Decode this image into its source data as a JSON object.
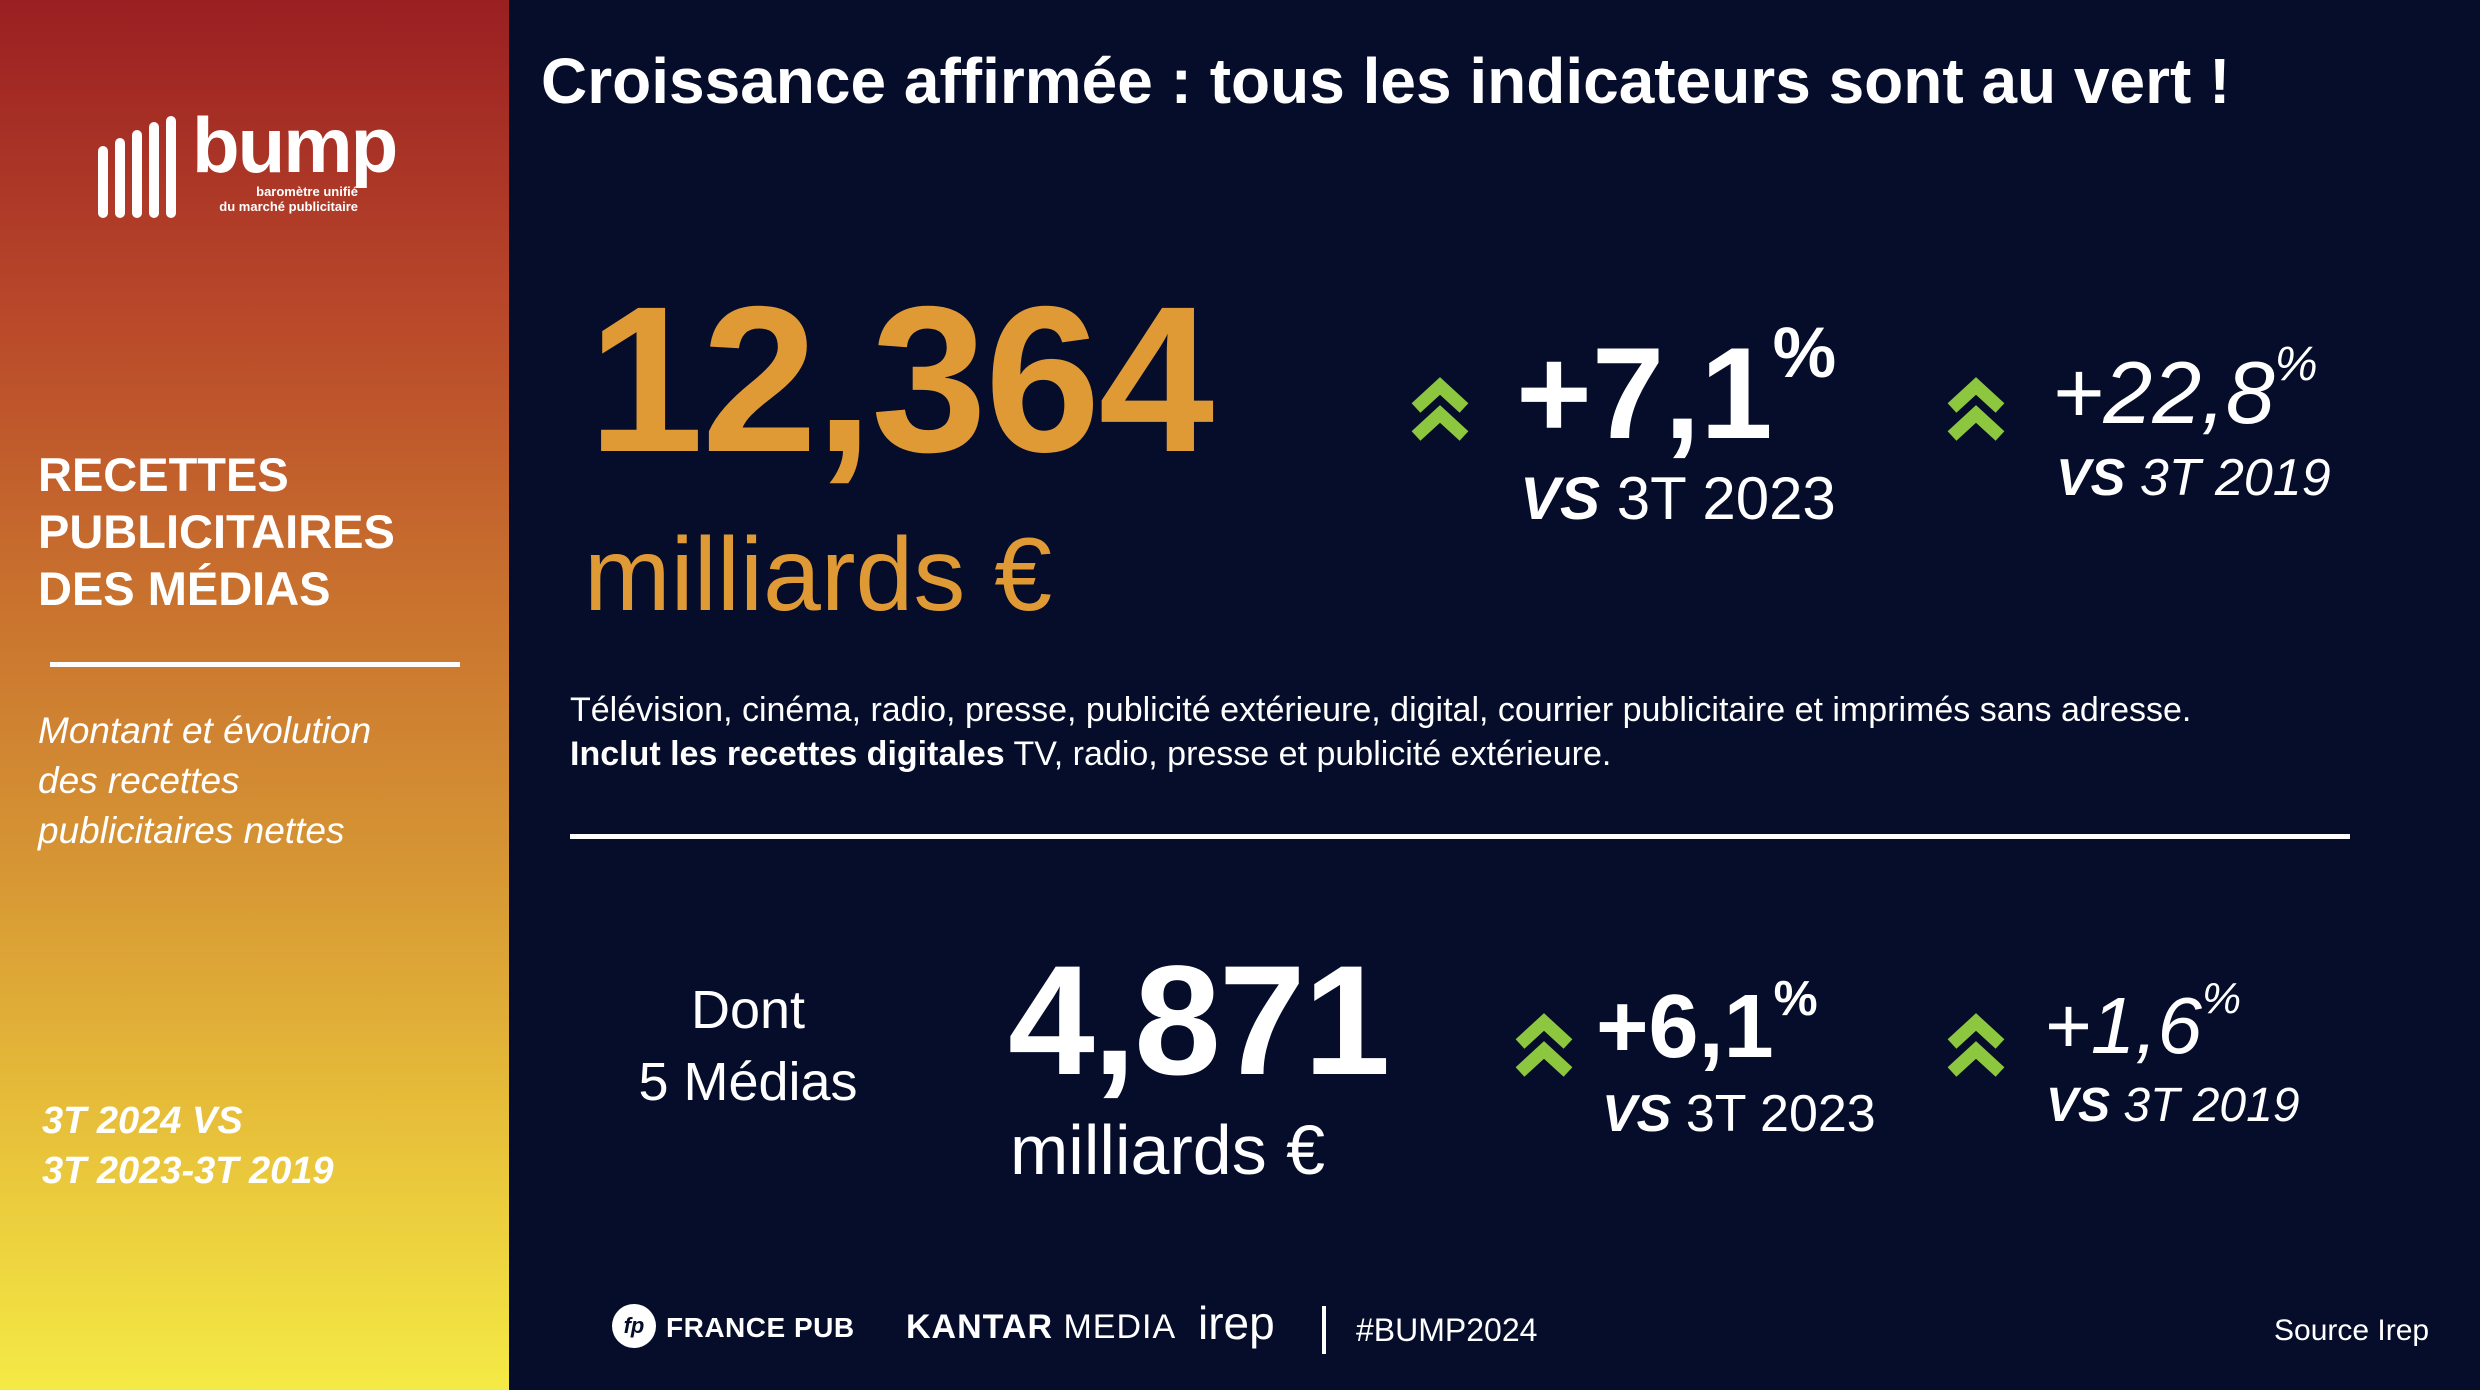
{
  "logo": {
    "name": "bump",
    "subtitle_line1": "baromètre unifié",
    "subtitle_line2": "du marché publicitaire"
  },
  "sidebar": {
    "title_line1": "RECETTES",
    "title_line2": "PUBLICITAIRES",
    "title_line3": "DES MÉDIAS",
    "subtitle_line1": "Montant et évolution",
    "subtitle_line2": "des recettes",
    "subtitle_line3": "publicitaires nettes",
    "period_line1": "3T 2024 VS",
    "period_line2": "3T 2023-3T 2019"
  },
  "headline": "Croissance affirmée : tous les indicateurs sont au vert !",
  "total": {
    "value": "12,364",
    "unit": "milliards €",
    "growth_2023": "+7,1",
    "growth_2023_sign": "%",
    "vs_2023_prefix": "VS",
    "vs_2023_period": "3T 2023",
    "growth_2019": "+22,8",
    "growth_2019_sign": "%",
    "vs_2019_prefix": "VS",
    "vs_2019_period": "3T 2019"
  },
  "description": {
    "line1": "Télévision, cinéma, radio, presse, publicité extérieure, digital, courrier publicitaire et imprimés sans adresse.",
    "line2_bold": "Inclut les recettes digitales",
    "line2_rest": " TV, radio, presse et publicité extérieure."
  },
  "five_media": {
    "label_line1": "Dont",
    "label_line2": "5 Médias",
    "value": "4,871",
    "unit": "milliards €",
    "growth_2023": "+6,1",
    "growth_2023_sign": "%",
    "vs_2023_prefix": "VS",
    "vs_2023_period": "3T 2023",
    "growth_2019": "+1,6",
    "growth_2019_sign": "%",
    "vs_2019_prefix": "VS",
    "vs_2019_period": "3T 2019"
  },
  "footer": {
    "francepub_badge": "fp",
    "francepub": "FRANCE PUB",
    "kantar_bold": "KANTAR",
    "kantar_rest": " MEDIA",
    "irep": "irep",
    "hashtag": "#BUMP2024",
    "source": "Source Irep"
  },
  "colors": {
    "background": "#050d2b",
    "accent_gold": "#e09a35",
    "arrow_green": "#8dc63f"
  },
  "icons": {
    "growth": "double-chevron-up-icon"
  }
}
